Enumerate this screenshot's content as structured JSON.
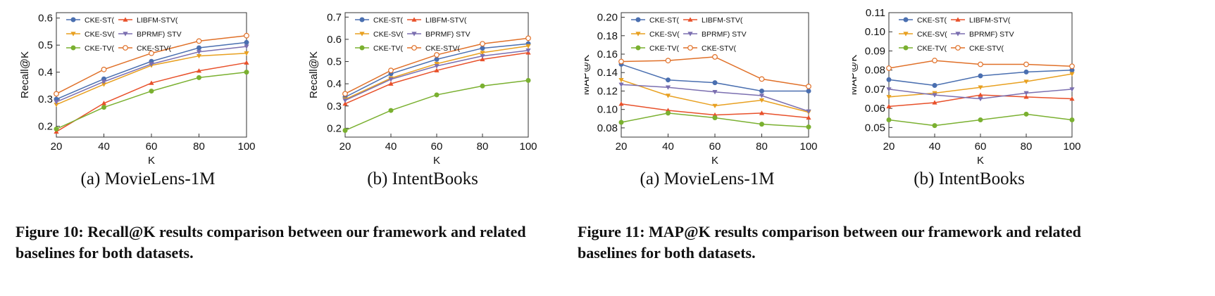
{
  "figures": [
    {
      "caption": "Figure 10: Recall@K results comparison between our framework and related baselines for both datasets."
    },
    {
      "caption": "Figure 11: MAP@K results comparison between our framework and related baselines for both datasets."
    }
  ],
  "chart_data": [
    {
      "type": "line",
      "subcaption": "(a) MovieLens-1M",
      "xlabel": "K",
      "ylabel": "Recall@K",
      "x": [
        20,
        40,
        60,
        80,
        100
      ],
      "xlim": [
        20,
        100
      ],
      "ylim": [
        0.16,
        0.62
      ],
      "xticks": [
        20,
        40,
        60,
        80,
        100
      ],
      "yticks": [
        0.2,
        0.3,
        0.4,
        0.5,
        0.6
      ],
      "grid": false,
      "legend": "top-left",
      "series": [
        {
          "name": "CKE-ST(",
          "color": "#4a6fb0",
          "marker": "circle",
          "values": [
            0.3,
            0.375,
            0.44,
            0.49,
            0.51
          ]
        },
        {
          "name": "LIBFM-STV(",
          "color": "#e8502a",
          "marker": "triangle-up",
          "values": [
            0.18,
            0.285,
            0.36,
            0.405,
            0.435
          ]
        },
        {
          "name": "CKE-SV(",
          "color": "#e8a020",
          "marker": "triangle-down",
          "values": [
            0.28,
            0.355,
            0.425,
            0.46,
            0.47
          ]
        },
        {
          "name": "BPRMF) STV",
          "color": "#7b6fb0",
          "marker": "triangle-down",
          "values": [
            0.29,
            0.365,
            0.43,
            0.475,
            0.495
          ]
        },
        {
          "name": "CKE-TV(",
          "color": "#7ab030",
          "marker": "circle",
          "values": [
            0.19,
            0.27,
            0.33,
            0.38,
            0.4
          ]
        },
        {
          "name": "CKE-STV(",
          "color": "#e07028",
          "marker": "open-circle",
          "values": [
            0.32,
            0.41,
            0.47,
            0.515,
            0.535
          ]
        }
      ]
    },
    {
      "type": "line",
      "subcaption": "(b) IntentBooks",
      "xlabel": "K",
      "ylabel": "Recall@K",
      "x": [
        20,
        40,
        60,
        80,
        100
      ],
      "xlim": [
        20,
        100
      ],
      "ylim": [
        0.16,
        0.72
      ],
      "xticks": [
        20,
        40,
        60,
        80,
        100
      ],
      "yticks": [
        0.2,
        0.3,
        0.4,
        0.5,
        0.6,
        0.7
      ],
      "grid": false,
      "legend": "top-left",
      "series": [
        {
          "name": "CKE-ST(",
          "color": "#4a6fb0",
          "marker": "circle",
          "values": [
            0.34,
            0.445,
            0.51,
            0.56,
            0.58
          ]
        },
        {
          "name": "LIBFM-STV(",
          "color": "#e8502a",
          "marker": "triangle-up",
          "values": [
            0.31,
            0.4,
            0.46,
            0.51,
            0.54
          ]
        },
        {
          "name": "CKE-SV(",
          "color": "#e8a020",
          "marker": "triangle-down",
          "values": [
            0.33,
            0.425,
            0.49,
            0.54,
            0.57
          ]
        },
        {
          "name": "BPRMF) STV",
          "color": "#7b6fb0",
          "marker": "triangle-down",
          "values": [
            0.325,
            0.42,
            0.48,
            0.525,
            0.55
          ]
        },
        {
          "name": "CKE-TV(",
          "color": "#7ab030",
          "marker": "circle",
          "values": [
            0.19,
            0.28,
            0.35,
            0.39,
            0.415
          ]
        },
        {
          "name": "CKE-STV(",
          "color": "#e07028",
          "marker": "open-circle",
          "values": [
            0.355,
            0.46,
            0.53,
            0.58,
            0.605
          ]
        }
      ]
    },
    {
      "type": "line",
      "subcaption": "(a) MovieLens-1M",
      "xlabel": "K",
      "ylabel": "MAP@K",
      "x": [
        20,
        40,
        60,
        80,
        100
      ],
      "xlim": [
        20,
        100
      ],
      "ylim": [
        0.07,
        0.205
      ],
      "xticks": [
        20,
        40,
        60,
        80,
        100
      ],
      "yticks": [
        0.08,
        0.1,
        0.12,
        0.14,
        0.16,
        0.18,
        0.2
      ],
      "grid": false,
      "legend": "top-left",
      "series": [
        {
          "name": "CKE-ST(",
          "color": "#4a6fb0",
          "marker": "circle",
          "values": [
            0.149,
            0.132,
            0.129,
            0.12,
            0.12
          ]
        },
        {
          "name": "LIBFM-STV(",
          "color": "#e8502a",
          "marker": "triangle-up",
          "values": [
            0.106,
            0.099,
            0.094,
            0.096,
            0.091
          ]
        },
        {
          "name": "CKE-SV(",
          "color": "#e8a020",
          "marker": "triangle-down",
          "values": [
            0.132,
            0.115,
            0.104,
            0.11,
            0.097
          ]
        },
        {
          "name": "BPRMF) STV",
          "color": "#7b6fb0",
          "marker": "triangle-down",
          "values": [
            0.127,
            0.124,
            0.119,
            0.115,
            0.098
          ]
        },
        {
          "name": "CKE-TV(",
          "color": "#7ab030",
          "marker": "circle",
          "values": [
            0.086,
            0.096,
            0.091,
            0.084,
            0.081
          ]
        },
        {
          "name": "CKE-STV(",
          "color": "#e07028",
          "marker": "open-circle",
          "values": [
            0.152,
            0.153,
            0.157,
            0.133,
            0.125
          ]
        }
      ]
    },
    {
      "type": "line",
      "subcaption": "(b) IntentBooks",
      "xlabel": "K",
      "ylabel": "MAP@K",
      "x": [
        20,
        40,
        60,
        80,
        100
      ],
      "xlim": [
        20,
        100
      ],
      "ylim": [
        0.045,
        0.11
      ],
      "xticks": [
        20,
        40,
        60,
        80,
        100
      ],
      "yticks": [
        0.05,
        0.06,
        0.07,
        0.08,
        0.09,
        0.1,
        0.11
      ],
      "grid": false,
      "legend": "top-left",
      "series": [
        {
          "name": "CKE-ST(",
          "color": "#4a6fb0",
          "marker": "circle",
          "values": [
            0.075,
            0.072,
            0.077,
            0.079,
            0.08
          ]
        },
        {
          "name": "LIBFM-STV(",
          "color": "#e8502a",
          "marker": "triangle-up",
          "values": [
            0.061,
            0.063,
            0.067,
            0.066,
            0.065
          ]
        },
        {
          "name": "CKE-SV(",
          "color": "#e8a020",
          "marker": "triangle-down",
          "values": [
            0.066,
            0.068,
            0.071,
            0.074,
            0.078
          ]
        },
        {
          "name": "BPRMF) STV",
          "color": "#7b6fb0",
          "marker": "triangle-down",
          "values": [
            0.07,
            0.067,
            0.065,
            0.068,
            0.07
          ]
        },
        {
          "name": "CKE-TV(",
          "color": "#7ab030",
          "marker": "circle",
          "values": [
            0.054,
            0.051,
            0.054,
            0.057,
            0.054
          ]
        },
        {
          "name": "CKE-STV(",
          "color": "#e07028",
          "marker": "open-circle",
          "values": [
            0.081,
            0.085,
            0.083,
            0.083,
            0.082
          ]
        }
      ]
    }
  ]
}
